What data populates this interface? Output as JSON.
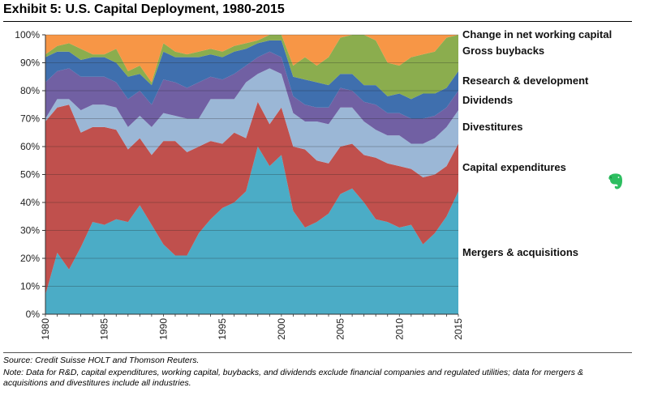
{
  "title": "Exhibit 5: U.S. Capital Deployment, 1980-2015",
  "source": "Source: Credit Suisse HOLT and Thomson Reuters.",
  "note": "Note: Data for R&D, capital expenditures, working capital, buybacks, and dividends exclude financial companies and regulated utilities; data for mergers & acquisitions and divestitures include all industries.",
  "chart_data": {
    "type": "area",
    "stacked": true,
    "x": [
      1980,
      1981,
      1982,
      1983,
      1984,
      1985,
      1986,
      1987,
      1988,
      1989,
      1990,
      1991,
      1992,
      1993,
      1994,
      1995,
      1996,
      1997,
      1998,
      1999,
      2000,
      2001,
      2002,
      2003,
      2004,
      2005,
      2006,
      2007,
      2008,
      2009,
      2010,
      2011,
      2012,
      2013,
      2014,
      2015
    ],
    "ylim": [
      0,
      100
    ],
    "yticks": [
      0,
      10,
      20,
      30,
      40,
      50,
      60,
      70,
      80,
      90,
      100
    ],
    "ytick_labels": [
      "0%",
      "10%",
      "20%",
      "30%",
      "40%",
      "50%",
      "60%",
      "70%",
      "80%",
      "90%",
      "100%"
    ],
    "xticks": [
      1980,
      1985,
      1990,
      1995,
      2000,
      2005,
      2010,
      2015
    ],
    "xtick_labels": [
      "1980",
      "1985",
      "1990",
      "1995",
      "2000",
      "2005",
      "2010",
      "2015"
    ],
    "legend_position": "right",
    "series": [
      {
        "name": "Mergers & acquisitions",
        "color": "#4bacc6",
        "values": [
          7,
          22,
          16,
          24,
          33,
          32,
          34,
          33,
          39,
          32,
          25,
          21,
          21,
          29,
          34,
          38,
          40,
          44,
          60,
          53,
          57,
          37,
          31,
          33,
          36,
          43,
          45,
          40,
          34,
          33,
          31,
          32,
          25,
          29,
          35,
          44
        ]
      },
      {
        "name": "Capital expenditures",
        "color": "#c0504d",
        "values": [
          62,
          52,
          59,
          41,
          34,
          35,
          32,
          26,
          24,
          25,
          37,
          41,
          37,
          31,
          28,
          23,
          25,
          19,
          16,
          15,
          17,
          23,
          28,
          22,
          18,
          17,
          16,
          17,
          22,
          21,
          22,
          20,
          24,
          21,
          18,
          17
        ]
      },
      {
        "name": "Divestitures",
        "color": "#9bb7d6",
        "values": [
          1,
          3,
          2,
          8,
          8,
          8,
          8,
          8,
          8,
          10,
          10,
          9,
          12,
          10,
          15,
          16,
          12,
          20,
          10,
          20,
          12,
          12,
          10,
          14,
          14,
          14,
          13,
          12,
          10,
          10,
          11,
          9,
          12,
          13,
          14,
          12
        ]
      },
      {
        "name": "Dividends",
        "color": "#7160a3",
        "values": [
          13,
          10,
          11,
          12,
          10,
          10,
          9,
          10,
          9,
          8,
          12,
          12,
          11,
          13,
          8,
          7,
          9,
          6,
          6,
          6,
          6,
          6,
          6,
          5,
          6,
          7,
          6,
          7,
          9,
          8,
          8,
          9,
          9,
          8,
          7,
          7
        ]
      },
      {
        "name": "Research & development",
        "color": "#3f6fae",
        "values": [
          9,
          7,
          6,
          6,
          7,
          7,
          7,
          8,
          6,
          7,
          10,
          9,
          11,
          9,
          8,
          8,
          8,
          6,
          5,
          4,
          6,
          7,
          9,
          9,
          8,
          5,
          6,
          6,
          7,
          6,
          7,
          7,
          9,
          8,
          7,
          7
        ]
      },
      {
        "name": "Gross buybacks",
        "color": "#8bad4e",
        "values": [
          1,
          2,
          3,
          4,
          1,
          1,
          5,
          2,
          3,
          1,
          3,
          2,
          1,
          2,
          2,
          2,
          2,
          2,
          1,
          2,
          2,
          4,
          8,
          6,
          10,
          13,
          14,
          18,
          16,
          12,
          10,
          15,
          14,
          15,
          18,
          13
        ]
      },
      {
        "name": "Change in net working capital",
        "color": "#f79646",
        "values": [
          7,
          4,
          3,
          5,
          7,
          7,
          5,
          13,
          11,
          17,
          3,
          6,
          7,
          6,
          5,
          6,
          4,
          3,
          2,
          0,
          0,
          11,
          8,
          11,
          8,
          1,
          0,
          0,
          2,
          10,
          11,
          8,
          7,
          6,
          1,
          0
        ]
      }
    ],
    "xlabel": "",
    "ylabel": ""
  },
  "evernote_icon": "elephant-icon"
}
